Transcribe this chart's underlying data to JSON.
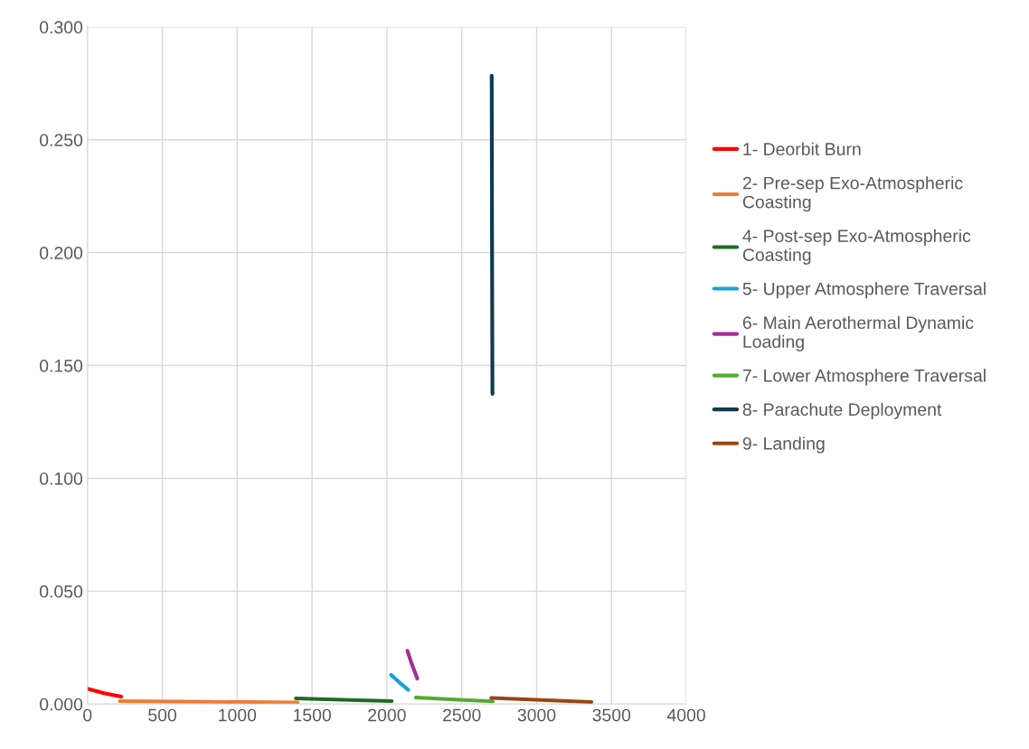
{
  "chart_data": {
    "type": "line",
    "series": [
      {
        "name": "1- Deorbit Burn",
        "color": "#ff0000",
        "x": [
          0,
          110,
          225
        ],
        "values": [
          0.0068,
          0.0048,
          0.0033
        ]
      },
      {
        "name": "2- Pre-sep Exo-Atmospheric\nCoasting",
        "color": "#ed7d31",
        "x": [
          216,
          800,
          1404
        ],
        "values": [
          0.0013,
          0.001,
          0.0007
        ]
      },
      {
        "name": "4- Post-sep Exo-Atmospheric\nCoasting",
        "color": "#1e6b24",
        "x": [
          1392,
          1700,
          2032
        ],
        "values": [
          0.0025,
          0.0019,
          0.0013
        ]
      },
      {
        "name": "5- Upper Atmosphere Traversal",
        "color": "#1aa0d6",
        "x": [
          2028,
          2083,
          2143
        ],
        "values": [
          0.0129,
          0.0096,
          0.0063
        ]
      },
      {
        "name": "6- Main Aerothermal Dynamic\nLoading",
        "color": "#a0309a",
        "x": [
          2137,
          2167,
          2203
        ],
        "values": [
          0.0236,
          0.0176,
          0.0113
        ]
      },
      {
        "name": "7- Lower Atmosphere Traversal",
        "color": "#55aa33",
        "x": [
          2193,
          2450,
          2707
        ],
        "values": [
          0.0029,
          0.002,
          0.0012
        ]
      },
      {
        "name": "8- Parachute Deployment",
        "color": "#0e3a4e",
        "x": [
          2700,
          2702,
          2705
        ],
        "values": [
          0.2784,
          0.21,
          0.1374
        ]
      },
      {
        "name": "9- Landing",
        "color": "#9a4512",
        "x": [
          2697,
          3030,
          3366
        ],
        "values": [
          0.0027,
          0.0018,
          0.0009
        ]
      }
    ],
    "xlim": [
      0,
      4000
    ],
    "xticks": [
      0,
      500,
      1000,
      1500,
      2000,
      2500,
      3000,
      3500,
      4000
    ],
    "ylim": [
      0,
      0.3
    ],
    "yticks": [
      {
        "value": 0,
        "label": "0.000"
      },
      {
        "value": 0.05,
        "label": "0.050"
      },
      {
        "value": 0.1,
        "label": "0.100"
      },
      {
        "value": 0.15,
        "label": "0.150"
      },
      {
        "value": 0.2,
        "label": "0.200"
      },
      {
        "value": 0.25,
        "label": "0.250"
      },
      {
        "value": 0.3,
        "label": "0.300"
      }
    ],
    "grid": true,
    "legend": "right",
    "marker": "none",
    "line_style": "solid"
  }
}
